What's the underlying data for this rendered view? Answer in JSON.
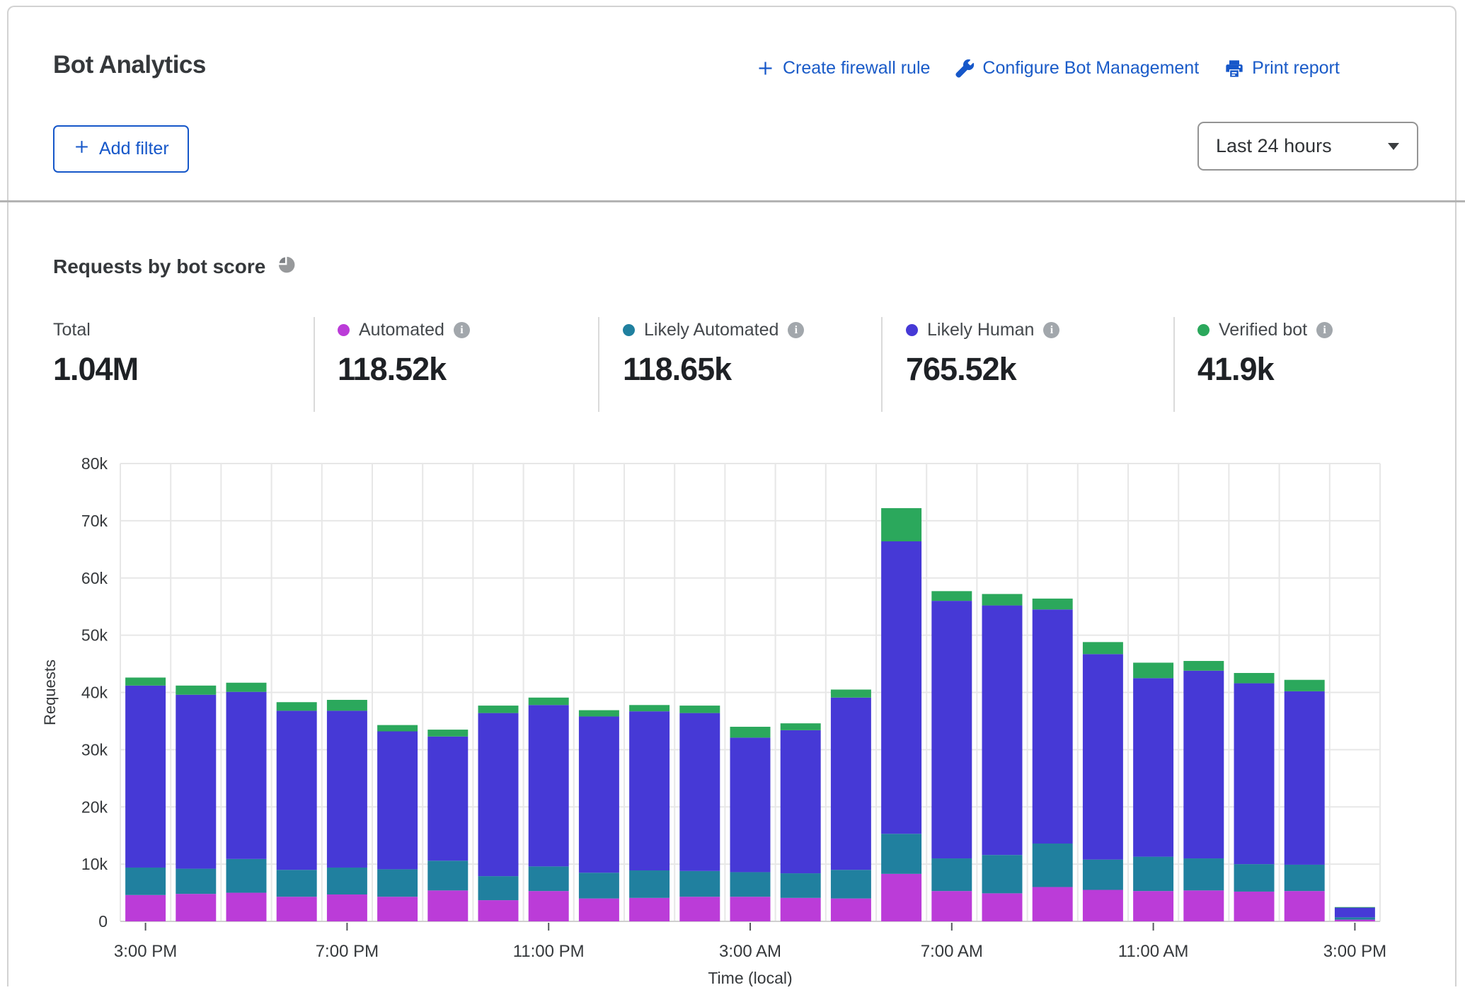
{
  "header": {
    "title": "Bot Analytics",
    "actions": [
      {
        "icon": "plus-icon",
        "label": "Create firewall rule"
      },
      {
        "icon": "wrench-icon",
        "label": "Configure Bot Management"
      },
      {
        "icon": "printer-icon",
        "label": "Print report"
      }
    ],
    "add_filter_label": "Add filter",
    "time_range_selected": "Last 24 hours"
  },
  "panel": {
    "title": "Requests by bot score",
    "stats": {
      "total_label": "Total",
      "total_value": "1.04M",
      "series": [
        {
          "label": "Automated",
          "value": "118.52k",
          "color": "#bb3cd8"
        },
        {
          "label": "Likely Automated",
          "value": "118.65k",
          "color": "#20809f"
        },
        {
          "label": "Likely Human",
          "value": "765.52k",
          "color": "#4639d6"
        },
        {
          "label": "Verified bot",
          "value": "41.9k",
          "color": "#2ba85c"
        }
      ]
    }
  },
  "chart_data": {
    "type": "bar",
    "stacked": true,
    "title": "Requests by bot score",
    "xlabel": "Time (local)",
    "ylabel": "Requests",
    "ylim": [
      0,
      80000
    ],
    "ytick_values": [
      0,
      10000,
      20000,
      30000,
      40000,
      50000,
      60000,
      70000,
      80000
    ],
    "ytick_labels": [
      "0",
      "10k",
      "20k",
      "30k",
      "40k",
      "50k",
      "60k",
      "70k",
      "80k"
    ],
    "grid": true,
    "legend_position": "top",
    "categories": [
      "3:00 PM",
      "4:00 PM",
      "5:00 PM",
      "6:00 PM",
      "7:00 PM",
      "8:00 PM",
      "9:00 PM",
      "10:00 PM",
      "11:00 PM",
      "12:00 AM",
      "1:00 AM",
      "2:00 AM",
      "3:00 AM",
      "4:00 AM",
      "5:00 AM",
      "6:00 AM",
      "7:00 AM",
      "8:00 AM",
      "9:00 AM",
      "10:00 AM",
      "11:00 AM",
      "12:00 PM",
      "1:00 PM",
      "2:00 PM",
      "3:00 PM"
    ],
    "x_tick_indices": [
      0,
      4,
      8,
      12,
      16,
      20,
      24
    ],
    "x_tick_labels": [
      "3:00 PM",
      "7:00 PM",
      "11:00 PM",
      "3:00 AM",
      "7:00 AM",
      "11:00 AM",
      "3:00 PM"
    ],
    "series": [
      {
        "name": "Automated",
        "color": "#bb3cd8",
        "values": [
          4600,
          4800,
          5000,
          4300,
          4700,
          4300,
          5400,
          3700,
          5300,
          4000,
          4100,
          4300,
          4300,
          4100,
          4000,
          8300,
          5300,
          4900,
          6000,
          5500,
          5300,
          5400,
          5200,
          5300,
          300
        ]
      },
      {
        "name": "Likely Automated",
        "color": "#20809f",
        "values": [
          4800,
          4400,
          5900,
          4700,
          4700,
          4800,
          5200,
          4200,
          4300,
          4500,
          4800,
          4500,
          4300,
          4300,
          5000,
          7000,
          5700,
          6700,
          7600,
          5300,
          6000,
          5600,
          4800,
          4600,
          400
        ]
      },
      {
        "name": "Likely Human",
        "color": "#4639d6",
        "values": [
          31800,
          30400,
          29200,
          27800,
          27400,
          24100,
          21700,
          28500,
          28200,
          27300,
          27800,
          27600,
          23500,
          25000,
          30100,
          51100,
          45000,
          43600,
          40900,
          35900,
          31200,
          32800,
          31600,
          30300,
          1700
        ]
      },
      {
        "name": "Verified bot",
        "color": "#2ba85c",
        "values": [
          1400,
          1600,
          1600,
          1500,
          1900,
          1100,
          1200,
          1300,
          1300,
          1100,
          1100,
          1300,
          1900,
          1200,
          1400,
          5800,
          1700,
          2000,
          1900,
          2100,
          2700,
          1700,
          1800,
          2000,
          100
        ]
      }
    ]
  }
}
